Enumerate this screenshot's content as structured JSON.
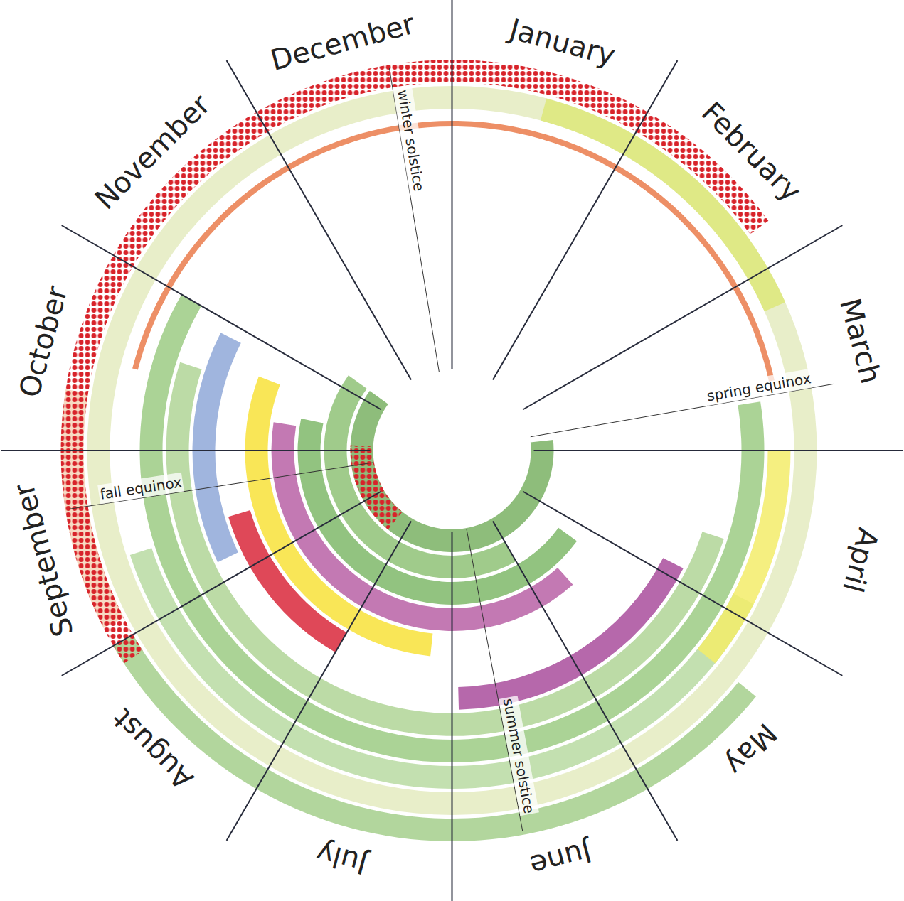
{
  "chart_data": {
    "type": "polar_bands",
    "tick_labels": false,
    "categories": [
      "January",
      "February",
      "March",
      "April",
      "May",
      "June",
      "July",
      "August",
      "September",
      "October",
      "November",
      "December"
    ],
    "markers": [
      {
        "label": "spring equinox",
        "at": 2.67
      },
      {
        "label": "summer solstice",
        "at": 5.65
      },
      {
        "label": "fall equinox",
        "at": 8.71
      },
      {
        "label": "winter solstice",
        "at": 11.69
      }
    ],
    "series": [
      {
        "color": "#e4ebbf",
        "start": 0,
        "end": 12,
        "ring": 11
      },
      {
        "color": "#dde77a",
        "start": 0.5,
        "end": 2.2,
        "ring": 11
      },
      {
        "color": "#f6d4b8",
        "start": 8.1,
        "end": 9.3,
        "ring": 12
      },
      {
        "color": "#a5cf8c",
        "start": 4.3,
        "end": 8.0,
        "ring": 12
      },
      {
        "color": "#d8232a",
        "start": 7.9,
        "end": 1.8,
        "ring": 12,
        "marker": "dots"
      },
      {
        "color": "#b9daa2",
        "start": 3.9,
        "end": 8.4,
        "ring": 10
      },
      {
        "color": "#f3ec6a",
        "start": 3.0,
        "end": 4.3,
        "ring": 10
      },
      {
        "color": "#ea7b4b",
        "start": 9.48,
        "end": 2.59,
        "ring": 10,
        "line_style": "thin"
      },
      {
        "color": "#9ccb84",
        "start": 2.7,
        "end": 10.0,
        "ring": 9
      },
      {
        "color": "#b0d597",
        "start": 3.6,
        "end": 9.6,
        "ring": 8
      },
      {
        "color": "#a94d9c",
        "start": 3.9,
        "end": 5.95,
        "ring": 7
      },
      {
        "color": "#8fa8d8",
        "start": 8.15,
        "end": 9.9,
        "ring": 7
      },
      {
        "color": "#d9283b",
        "start": 7.0,
        "end": 8.45,
        "ring": 6
      },
      {
        "color": "#f8e23a",
        "start": 6.2,
        "end": 9.7,
        "ring": 5
      },
      {
        "color": "#b862a6",
        "start": 4.6,
        "end": 9.3,
        "ring": 4
      },
      {
        "color": "#7fb86a",
        "start": 4.2,
        "end": 9.4,
        "ring": 3
      },
      {
        "color": "#8fc277",
        "start": 5.0,
        "end": 10.2,
        "ring": 2
      },
      {
        "color": "#7ab164",
        "start": 2.8,
        "end": 10.2,
        "ring": 1
      },
      {
        "color": "#d8232a",
        "start": 7.3,
        "end": 9.1,
        "ring": 1,
        "marker": "dots"
      }
    ]
  }
}
